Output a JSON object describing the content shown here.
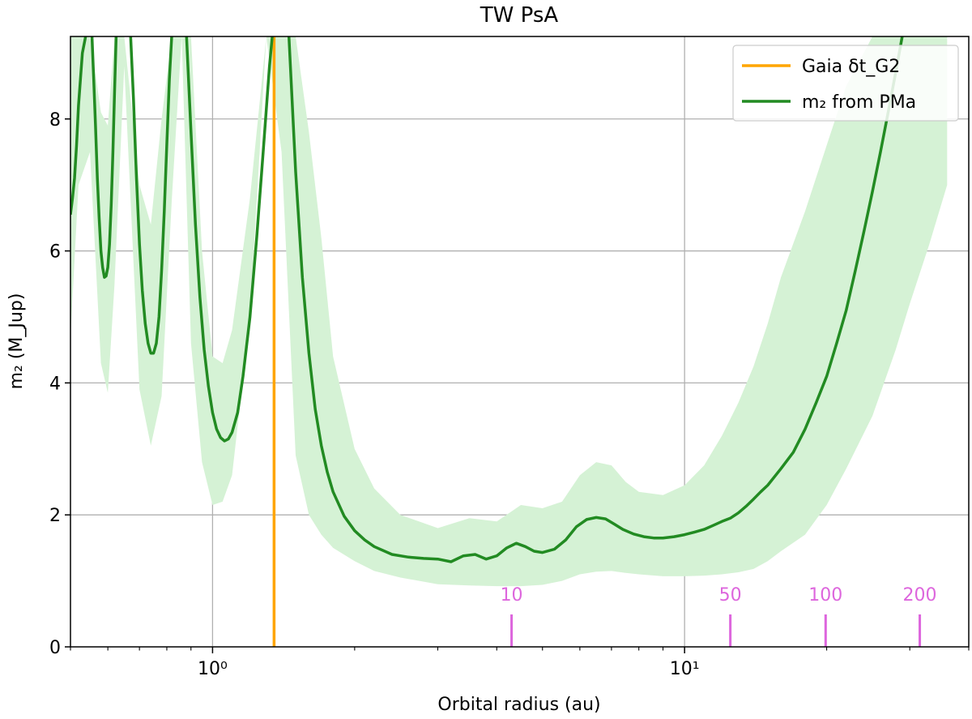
{
  "chart_data": {
    "type": "line",
    "title": "TW PsA",
    "xlabel": "Orbital radius (au)",
    "ylabel": "m₂ (M_Jup)",
    "xscale": "log",
    "xlim": [
      0.5,
      40
    ],
    "ylim": [
      0,
      9.25
    ],
    "x_ticks": [
      {
        "value": 1,
        "label": "10⁰"
      },
      {
        "value": 10,
        "label": "10¹"
      }
    ],
    "y_ticks": [
      {
        "value": 0,
        "label": "0"
      },
      {
        "value": 2,
        "label": "2"
      },
      {
        "value": 4,
        "label": "4"
      },
      {
        "value": 6,
        "label": "6"
      },
      {
        "value": 8,
        "label": "8"
      }
    ],
    "grid": true,
    "legend_position": "top-right",
    "colors": {
      "gaia": "#ffa500",
      "curve": "#228b22",
      "band": "#d5f2d5",
      "period": "#dd66dd"
    },
    "series": [
      {
        "name": "Gaia δt_G2",
        "type": "vline",
        "x": 1.35
      },
      {
        "name": "m₂ from PMa",
        "type": "line",
        "segments": [
          {
            "x": [
              0.5,
              0.505,
              0.51,
              0.515,
              0.52,
              0.53,
              0.54
            ],
            "y": [
              6.55,
              6.8,
              7.1,
              7.6,
              8.2,
              9.0,
              9.3
            ]
          },
          {
            "x": [
              0.555,
              0.56,
              0.565,
              0.57,
              0.575,
              0.58,
              0.585,
              0.59,
              0.595,
              0.6,
              0.605,
              0.61,
              0.615,
              0.62,
              0.625
            ],
            "y": [
              9.3,
              8.6,
              7.9,
              7.1,
              6.5,
              6.0,
              5.75,
              5.6,
              5.62,
              5.75,
              6.1,
              6.7,
              7.5,
              8.4,
              9.3
            ]
          },
          {
            "x": [
              0.67,
              0.68,
              0.69,
              0.7,
              0.71,
              0.72,
              0.73,
              0.74,
              0.75,
              0.76,
              0.77,
              0.78,
              0.79,
              0.8,
              0.81,
              0.82
            ],
            "y": [
              9.3,
              8.3,
              7.1,
              6.1,
              5.4,
              4.9,
              4.6,
              4.45,
              4.45,
              4.6,
              5.0,
              5.7,
              6.6,
              7.6,
              8.6,
              9.3
            ]
          },
          {
            "x": [
              0.88,
              0.9,
              0.92,
              0.94,
              0.96,
              0.98,
              1.0,
              1.02,
              1.04,
              1.06,
              1.08,
              1.1,
              1.13,
              1.16,
              1.2,
              1.24,
              1.28,
              1.32,
              1.34
            ],
            "y": [
              9.3,
              7.8,
              6.4,
              5.3,
              4.5,
              3.95,
              3.55,
              3.3,
              3.17,
              3.12,
              3.15,
              3.25,
              3.55,
              4.1,
              5.0,
              6.2,
              7.5,
              8.8,
              9.3
            ]
          },
          {
            "x": [
              1.45,
              1.5,
              1.55,
              1.6,
              1.65,
              1.7,
              1.75,
              1.8,
              1.9,
              2.0,
              2.1,
              2.2,
              2.4,
              2.6,
              2.8,
              3.0,
              3.2,
              3.4,
              3.6,
              3.8,
              4.0,
              4.2,
              4.4,
              4.6,
              4.8,
              5.0,
              5.3,
              5.6,
              5.9,
              6.2,
              6.5,
              6.8,
              7.1,
              7.4,
              7.8,
              8.2,
              8.6,
              9.0,
              9.5,
              10.0,
              10.5,
              11.0,
              11.5,
              12.0,
              12.5,
              13.0,
              13.5,
              14.0,
              14.5,
              15.0,
              16.0,
              17.0,
              18.0,
              19.0,
              20.0,
              21.0,
              22.0,
              23.0,
              24.0,
              25.0,
              26.0,
              27.0,
              28.0,
              29.0,
              30.0
            ],
            "y": [
              9.3,
              7.2,
              5.6,
              4.45,
              3.6,
              3.05,
              2.65,
              2.35,
              1.98,
              1.76,
              1.62,
              1.52,
              1.4,
              1.36,
              1.34,
              1.33,
              1.29,
              1.38,
              1.4,
              1.33,
              1.38,
              1.5,
              1.57,
              1.52,
              1.45,
              1.43,
              1.48,
              1.62,
              1.82,
              1.93,
              1.96,
              1.94,
              1.86,
              1.78,
              1.71,
              1.67,
              1.65,
              1.65,
              1.67,
              1.7,
              1.74,
              1.78,
              1.84,
              1.9,
              1.95,
              2.03,
              2.13,
              2.24,
              2.35,
              2.45,
              2.7,
              2.95,
              3.3,
              3.7,
              4.1,
              4.6,
              5.1,
              5.7,
              6.3,
              6.9,
              7.5,
              8.1,
              8.7,
              9.3,
              9.9
            ]
          }
        ],
        "band_x": [
          0.5,
          0.52,
          0.55,
          0.58,
          0.6,
          0.62,
          0.65,
          0.7,
          0.74,
          0.78,
          0.82,
          0.86,
          0.9,
          0.95,
          1.0,
          1.05,
          1.1,
          1.2,
          1.3,
          1.4,
          1.5,
          1.6,
          1.7,
          1.8,
          2.0,
          2.2,
          2.5,
          3.0,
          3.5,
          4.0,
          4.5,
          5.0,
          5.5,
          6.0,
          6.5,
          7.0,
          7.5,
          8.0,
          9.0,
          10.0,
          11.0,
          12.0,
          13.0,
          14.0,
          15.0,
          16.0,
          18.0,
          20.0,
          22.0,
          25.0,
          28.0,
          30.0,
          33.0,
          36.0
        ],
        "band_low": [
          4.7,
          7.0,
          7.5,
          4.3,
          3.85,
          5.5,
          8.8,
          3.9,
          3.05,
          3.8,
          6.8,
          9.25,
          4.6,
          2.8,
          2.15,
          2.2,
          2.6,
          5.0,
          9.25,
          7.5,
          2.9,
          2.0,
          1.7,
          1.5,
          1.3,
          1.15,
          1.05,
          0.95,
          0.93,
          0.92,
          0.92,
          0.94,
          1.0,
          1.1,
          1.14,
          1.15,
          1.12,
          1.1,
          1.07,
          1.07,
          1.08,
          1.1,
          1.13,
          1.18,
          1.3,
          1.45,
          1.7,
          2.15,
          2.7,
          3.5,
          4.5,
          5.2,
          6.1,
          7.0
        ],
        "band_high": [
          9.25,
          9.25,
          9.25,
          8.1,
          7.9,
          9.25,
          9.25,
          7.0,
          6.4,
          8.0,
          9.25,
          9.25,
          9.25,
          6.0,
          4.4,
          4.3,
          4.8,
          6.8,
          9.25,
          9.25,
          9.25,
          7.8,
          6.2,
          4.4,
          3.0,
          2.4,
          2.0,
          1.8,
          1.95,
          1.9,
          2.15,
          2.1,
          2.2,
          2.6,
          2.8,
          2.75,
          2.5,
          2.35,
          2.3,
          2.45,
          2.75,
          3.2,
          3.7,
          4.25,
          4.9,
          5.6,
          6.6,
          7.6,
          8.5,
          9.25,
          9.25,
          9.25,
          9.25,
          9.25
        ]
      }
    ],
    "period_markers": [
      {
        "label": "10",
        "x": 4.3
      },
      {
        "label": "50",
        "x": 12.5
      },
      {
        "label": "100",
        "x": 19.9
      },
      {
        "label": "200",
        "x": 31.5
      }
    ]
  }
}
